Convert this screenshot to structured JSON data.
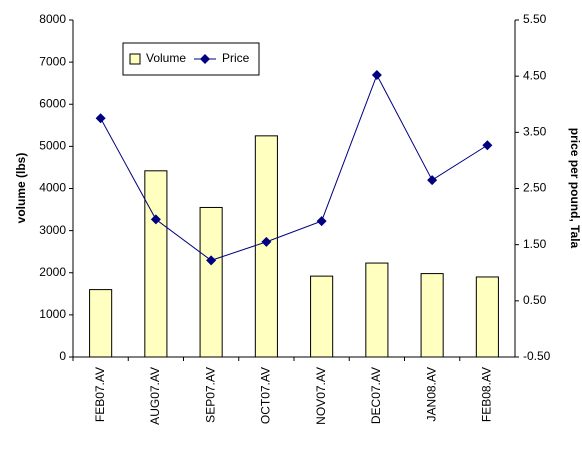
{
  "chart_data": {
    "type": "bar-line",
    "categories": [
      "FEB07.AV",
      "AUG07.AV",
      "SEP07.AV",
      "OCT07.AV",
      "NOV07.AV",
      "DEC07.AV",
      "JAN08.AV",
      "FEB08.AV"
    ],
    "series": [
      {
        "name": "Volume",
        "type": "bar",
        "color": "#ffffc0",
        "values": [
          1600,
          4420,
          3550,
          5250,
          1920,
          2230,
          1980,
          1900
        ]
      },
      {
        "name": "Price",
        "type": "line",
        "axis": "y2",
        "color": "#000080",
        "values": [
          3.75,
          1.95,
          1.22,
          1.55,
          1.92,
          4.52,
          2.65,
          3.27
        ]
      }
    ],
    "ylabel": "volume (lbs)",
    "y2label": "price per pound, Tala",
    "ylim": [
      0,
      8000
    ],
    "yticks": [
      0,
      1000,
      2000,
      3000,
      4000,
      5000,
      6000,
      7000,
      8000
    ],
    "y2lim": [
      -0.5,
      5.5
    ],
    "y2ticks": [
      {
        "value": -0.5,
        "label": "-0.50"
      },
      {
        "value": 0.5,
        "label": "0.50"
      },
      {
        "value": 1.5,
        "label": "1.50"
      },
      {
        "value": 2.5,
        "label": "2.50"
      },
      {
        "value": 3.5,
        "label": "3.50"
      },
      {
        "value": 4.5,
        "label": "4.50"
      },
      {
        "value": 5.5,
        "label": "5.50"
      }
    ],
    "grid": false
  }
}
